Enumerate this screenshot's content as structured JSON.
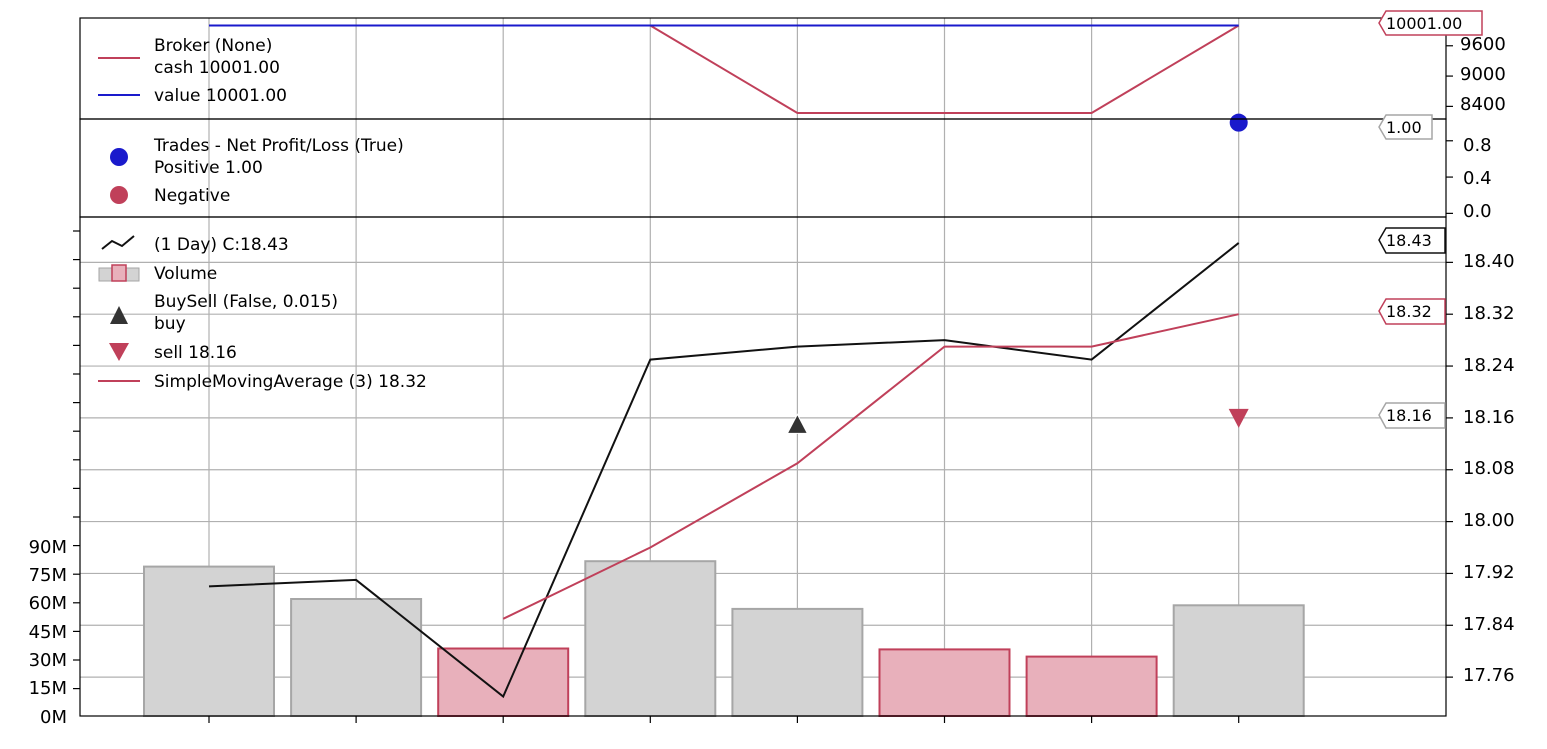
{
  "colors": {
    "red": "#c0405a",
    "blue": "#1a1acc",
    "black": "#111111",
    "bar_gray": "#d3d3d3",
    "bar_gray_edge": "#a6a6a6",
    "bar_red": "#e8b0bb",
    "grid": "#b0b0b0"
  },
  "broker_panel": {
    "legend": {
      "broker": "Broker (None)",
      "cash": "cash 10001.00",
      "value": "value 10001.00"
    },
    "tag": "10001.00",
    "yticks": [
      "9600",
      "9000",
      "8400"
    ]
  },
  "trades_panel": {
    "legend": {
      "title": "Trades - Net Profit/Loss (True)",
      "positive": "Positive 1.00",
      "negative": "Negative"
    },
    "tag": "1.00",
    "yticks": [
      "0.8",
      "0.4",
      "0.0"
    ]
  },
  "price_panel": {
    "legend": {
      "data": " (1 Day) C:18.43",
      "volume": "Volume",
      "buysell": "BuySell (False, 0.015)",
      "buy": "buy",
      "sell": "sell 18.16",
      "sma": "SimpleMovingAverage (3) 18.32"
    },
    "tags": {
      "close": "18.43",
      "sma": "18.32",
      "sell": "18.16"
    },
    "yticks_right": [
      "18.40",
      "18.32",
      "18.24",
      "18.16",
      "18.08",
      "18.00",
      "17.92",
      "17.84",
      "17.76"
    ],
    "yticks_left": [
      "90M",
      "75M",
      "60M",
      "45M",
      "30M",
      "15M",
      "0M"
    ]
  },
  "chart_data": [
    {
      "type": "line",
      "panel": "broker",
      "x": [
        1,
        2,
        3,
        4,
        5,
        6,
        7,
        8
      ],
      "series": [
        {
          "name": "cash",
          "values": [
            10001,
            10001,
            10001,
            10001,
            8270,
            8270,
            8270,
            10001
          ]
        },
        {
          "name": "value",
          "values": [
            10001,
            10001,
            10001,
            10001,
            10001,
            10001,
            10001,
            10001
          ]
        }
      ],
      "ylim": [
        8150,
        10150
      ]
    },
    {
      "type": "scatter",
      "panel": "trades",
      "series": [
        {
          "name": "Positive",
          "points": [
            [
              8,
              1.0
            ]
          ]
        },
        {
          "name": "Negative",
          "points": []
        }
      ],
      "ylim": [
        -0.04,
        1.04
      ]
    },
    {
      "type": "line",
      "panel": "price",
      "x": [
        1,
        2,
        3,
        4,
        5,
        6,
        7,
        8
      ],
      "series": [
        {
          "name": "close",
          "values": [
            17.9,
            17.91,
            17.73,
            18.25,
            18.27,
            18.28,
            18.25,
            18.43
          ]
        },
        {
          "name": "SimpleMovingAverage (3)",
          "values": [
            null,
            null,
            17.85,
            17.96,
            18.09,
            18.27,
            18.27,
            18.32
          ]
        },
        {
          "name": "buy",
          "points": [
            [
              5,
              18.15
            ]
          ]
        },
        {
          "name": "sell",
          "points": [
            [
              8,
              18.16
            ]
          ]
        }
      ],
      "ylim": [
        17.7,
        18.47
      ]
    },
    {
      "type": "bar",
      "panel": "volume",
      "x": [
        1,
        2,
        3,
        4,
        5,
        6,
        7,
        8
      ],
      "values": [
        83000000,
        65000000,
        37500000,
        86000000,
        59500000,
        37000000,
        33000000,
        61500000
      ],
      "direction": [
        "up",
        "up",
        "down",
        "up",
        "up",
        "down",
        "down",
        "up"
      ],
      "ylim": [
        0,
        95000000
      ]
    }
  ]
}
